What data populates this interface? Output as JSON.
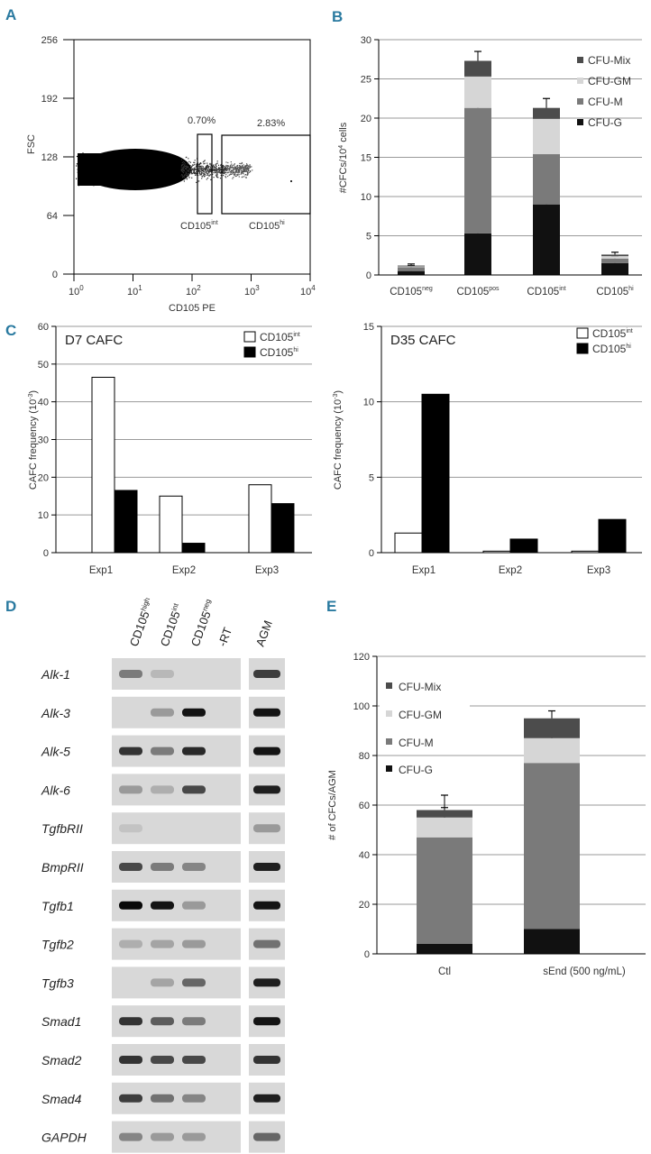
{
  "panels": {
    "A": {
      "letter": "A",
      "ylabel": "FSC",
      "xlabel": "CD105 PE",
      "yticks": [
        "256",
        "192",
        "128",
        "64",
        "0"
      ],
      "xticks": [
        "10",
        "10",
        "10",
        "10",
        "10"
      ],
      "xtick_exp": [
        "0",
        "1",
        "2",
        "3",
        "4"
      ],
      "gates": [
        {
          "name": "CD105",
          "sup": "int",
          "pct": "0.70%"
        },
        {
          "name": "CD105",
          "sup": "hi",
          "pct": "2.83%"
        }
      ]
    },
    "B": {
      "letter": "B",
      "ylabel_main": "#CFCs/10",
      "ylabel_sup": "4",
      "ylabel_tail": " cells",
      "ylim": [
        0,
        30
      ],
      "yticks": [
        "0",
        "5",
        "10",
        "15",
        "20",
        "25",
        "30"
      ],
      "categories": [
        {
          "name": "CD105",
          "sup": "neg"
        },
        {
          "name": "CD105",
          "sup": "pos"
        },
        {
          "name": "CD105",
          "sup": "int"
        },
        {
          "name": "CD105",
          "sup": "hi"
        }
      ],
      "legend": [
        "CFU-Mix",
        "CFU-GM",
        "CFU-M",
        "CFU-G"
      ]
    },
    "C": {
      "letter": "C",
      "left_title": "D7 CAFC",
      "right_title": "D35 CAFC",
      "ylabel_main": "CAFC frequency (10",
      "ylabel_sup": "-3",
      "ylabel_tail": ")",
      "left_yticks": [
        "0",
        "10",
        "20",
        "30",
        "40",
        "50",
        "60"
      ],
      "right_yticks": [
        "0",
        "5",
        "10",
        "15"
      ],
      "categories": [
        "Exp1",
        "Exp2",
        "Exp3"
      ],
      "legend": [
        {
          "name": "CD105",
          "sup": "int"
        },
        {
          "name": "CD105",
          "sup": "hi"
        }
      ]
    },
    "D": {
      "letter": "D",
      "lanes": [
        {
          "name": "CD105",
          "sup": "high"
        },
        {
          "name": "CD105",
          "sup": "int"
        },
        {
          "name": "CD105",
          "sup": "neg"
        },
        {
          "name": "-RT",
          "sup": ""
        },
        {
          "name": "AGM",
          "sup": ""
        }
      ],
      "genes": [
        "Alk-1",
        "Alk-3",
        "Alk-5",
        "Alk-6",
        "TgfbRII",
        "BmpRII",
        "Tgfb1",
        "Tgfb2",
        "Tgfb3",
        "Smad1",
        "Smad2",
        "Smad4",
        "GAPDH"
      ]
    },
    "E": {
      "letter": "E",
      "ylabel": "# of CFCs/AGM",
      "yticks": [
        "0",
        "20",
        "40",
        "60",
        "80",
        "100",
        "120"
      ],
      "categories": [
        "Ctl",
        "sEnd (500 ng/mL)"
      ],
      "legend": [
        "CFU-Mix",
        "CFU-GM",
        "CFU-M",
        "CFU-G"
      ]
    }
  },
  "chart_data": [
    {
      "panel": "A",
      "type": "scatter",
      "xlabel": "CD105 PE",
      "ylabel": "FSC",
      "x_scale": "log",
      "xlim": [
        1,
        10000
      ],
      "ylim": [
        0,
        256
      ],
      "gates": [
        {
          "label": "CD105int",
          "percent": 0.7,
          "x_range": [
            140,
            220
          ],
          "y_range": [
            64,
            160
          ]
        },
        {
          "label": "CD105hi",
          "percent": 2.83,
          "x_range": [
            250,
            10000
          ],
          "y_range": [
            64,
            160
          ]
        }
      ]
    },
    {
      "panel": "B",
      "type": "bar",
      "stacked": true,
      "ylabel": "#CFCs/10^4 cells",
      "ylim": [
        0,
        30
      ],
      "grid": true,
      "legend_position": "top-right",
      "categories": [
        "CD105neg",
        "CD105pos",
        "CD105int",
        "CD105hi"
      ],
      "series": [
        {
          "name": "CFU-G",
          "values": [
            0.5,
            5.3,
            9.0,
            1.5
          ],
          "errors": [
            0.3,
            2.5,
            1.5,
            0.5
          ]
        },
        {
          "name": "CFU-M",
          "values": [
            0.5,
            16.0,
            6.4,
            0.6
          ],
          "errors": [
            0.2,
            2.0,
            3.2,
            0.3
          ]
        },
        {
          "name": "CFU-GM",
          "values": [
            0.1,
            4.0,
            4.5,
            0.3
          ],
          "errors": [
            0.0,
            0.0,
            0.0,
            0.0
          ]
        },
        {
          "name": "CFU-Mix",
          "values": [
            0.1,
            2.0,
            1.4,
            0.2
          ],
          "errors": [
            0.2,
            1.2,
            1.2,
            0.3
          ]
        }
      ],
      "colors": {
        "CFU-G": "#111111",
        "CFU-M": "#7a7a7a",
        "CFU-GM": "#d6d6d6",
        "CFU-Mix": "#4c4c4c"
      }
    },
    {
      "panel": "C-left",
      "type": "bar",
      "title": "D7 CAFC",
      "ylabel": "CAFC frequency (10^-3)",
      "ylim": [
        0,
        60
      ],
      "grid": true,
      "legend_position": "top-right",
      "categories": [
        "Exp1",
        "Exp2",
        "Exp3"
      ],
      "series": [
        {
          "name": "CD105int",
          "values": [
            46.5,
            15.0,
            18.0
          ]
        },
        {
          "name": "CD105hi",
          "values": [
            16.5,
            2.5,
            13.0
          ]
        }
      ]
    },
    {
      "panel": "C-right",
      "type": "bar",
      "title": "D35 CAFC",
      "ylabel": "CAFC frequency (10^-3)",
      "ylim": [
        0,
        15
      ],
      "grid": true,
      "legend_position": "top-right",
      "categories": [
        "Exp1",
        "Exp2",
        "Exp3"
      ],
      "series": [
        {
          "name": "CD105int",
          "values": [
            1.3,
            0.1,
            0.1
          ]
        },
        {
          "name": "CD105hi",
          "values": [
            10.5,
            0.9,
            2.2
          ]
        }
      ]
    },
    {
      "panel": "E",
      "type": "bar",
      "stacked": true,
      "ylabel": "# of CFCs/AGM",
      "ylim": [
        0,
        120
      ],
      "grid": true,
      "legend_position": "top-left",
      "categories": [
        "Ctl",
        "sEnd (500 ng/mL)"
      ],
      "series": [
        {
          "name": "CFU-G",
          "values": [
            4,
            10
          ],
          "errors": [
            1,
            1.5
          ]
        },
        {
          "name": "CFU-M",
          "values": [
            43,
            67
          ],
          "errors": [
            0,
            0
          ]
        },
        {
          "name": "CFU-GM",
          "values": [
            8,
            10
          ],
          "errors": [
            9,
            6
          ]
        },
        {
          "name": "CFU-Mix",
          "values": [
            3,
            8
          ],
          "errors": [
            1,
            3
          ]
        }
      ],
      "colors": {
        "CFU-G": "#111111",
        "CFU-M": "#7a7a7a",
        "CFU-GM": "#d6d6d6",
        "CFU-Mix": "#4c4c4c"
      }
    }
  ],
  "gel": {
    "band_intensity": [
      [
        0.45,
        0.15,
        0.0,
        0.0,
        0.75
      ],
      [
        0.0,
        0.3,
        0.95,
        0.0,
        0.95
      ],
      [
        0.8,
        0.45,
        0.85,
        0.0,
        0.95
      ],
      [
        0.3,
        0.2,
        0.7,
        0.0,
        0.9
      ],
      [
        0.1,
        0.0,
        0.0,
        0.0,
        0.3
      ],
      [
        0.7,
        0.45,
        0.4,
        0.0,
        0.9
      ],
      [
        1.0,
        0.95,
        0.3,
        0.0,
        0.95
      ],
      [
        0.2,
        0.25,
        0.3,
        0.0,
        0.5
      ],
      [
        0.0,
        0.25,
        0.55,
        0.0,
        0.9
      ],
      [
        0.8,
        0.6,
        0.45,
        0.0,
        0.95
      ],
      [
        0.8,
        0.7,
        0.7,
        0.0,
        0.8
      ],
      [
        0.75,
        0.5,
        0.4,
        0.0,
        0.9
      ],
      [
        0.4,
        0.3,
        0.3,
        0.0,
        0.55
      ]
    ]
  }
}
